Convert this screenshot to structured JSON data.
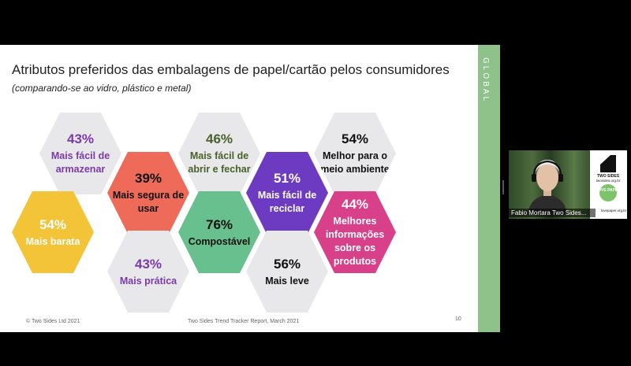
{
  "slide": {
    "title": "Atributos preferidos das embalagens de papel/cartão pelos consumidores",
    "subtitle": "(comparando-se ao vidro, plástico e metal)",
    "side_label": "GLOBAL",
    "footer_left": "© Two Sides Ltd 2021",
    "footer_center": "Two Sides Trend Tracker Report, March 2021",
    "page_number": "10",
    "hexagons": [
      {
        "pct": "43%",
        "label": "Mais fácil de armazenar",
        "bg": "#e8e8ea",
        "fg": "#7a3aa7"
      },
      {
        "pct": "46%",
        "label": "Mais fácil de abrir e fechar",
        "bg": "#e8e8ea",
        "fg": "#4b5f2a"
      },
      {
        "pct": "54%",
        "label": "Melhor para o meio ambiente",
        "bg": "#e8e8ea",
        "fg": "#111111"
      },
      {
        "pct": "39%",
        "label": "Mais segura de usar",
        "bg": "#ee6a59",
        "fg": "#111111"
      },
      {
        "pct": "51%",
        "label": "Mais fácil de reciclar",
        "bg": "#6c3bc1",
        "fg": "#ffffff"
      },
      {
        "pct": "54%",
        "label": "Mais barata",
        "bg": "#f3c338",
        "fg": "#ffffff"
      },
      {
        "pct": "76%",
        "label": "Compostável",
        "bg": "#67c08d",
        "fg": "#111111"
      },
      {
        "pct": "44%",
        "label": "Melhores informações sobre os produtos",
        "bg": "#d9408a",
        "fg": "#ffffff"
      },
      {
        "pct": "43%",
        "label": "Mais prática",
        "bg": "#e8e8ea",
        "fg": "#7a3aa7"
      },
      {
        "pct": "56%",
        "label": "Mais leve",
        "bg": "#e8e8ea",
        "fg": "#111111"
      }
    ]
  },
  "video": {
    "participant_name": "Fabio Mortara Two Sides...",
    "poster_brand": "TWO SIDES",
    "poster_url": "twosides.org.br",
    "poster_badge": "LOVE PAPER",
    "poster_url2": "lovepaper.org.br"
  }
}
